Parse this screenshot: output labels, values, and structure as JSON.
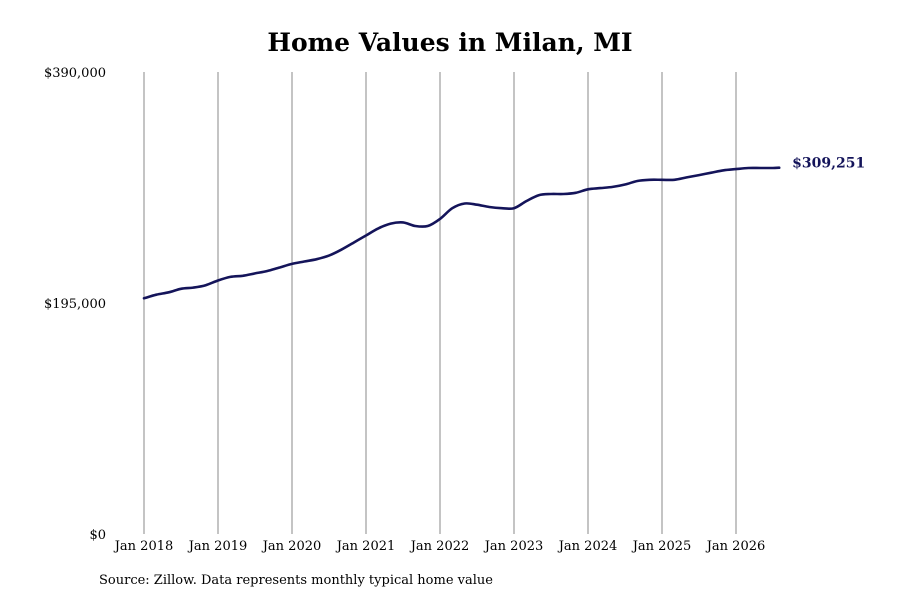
{
  "chart_data": {
    "type": "line",
    "title": "Home Values in Milan, MI",
    "xlabel": "",
    "ylabel": "",
    "ylim": [
      0,
      390000
    ],
    "yticks": [
      {
        "value": 0,
        "label": "$0"
      },
      {
        "value": 195000,
        "label": "$195,000"
      },
      {
        "value": 390000,
        "label": "$390,000"
      }
    ],
    "xticks": [
      "Jan 2018",
      "Jan 2019",
      "Jan 2020",
      "Jan 2021",
      "Jan 2022",
      "Jan 2023",
      "Jan 2024",
      "Jan 2025",
      "Jan 2026"
    ],
    "grid": "vertical",
    "line_color": "#14145a",
    "series": [
      {
        "x": [
          "2018-01",
          "2018-03",
          "2018-05",
          "2018-07",
          "2018-09",
          "2018-11",
          "2019-01",
          "2019-03",
          "2019-05",
          "2019-07",
          "2019-09",
          "2019-11",
          "2020-01",
          "2020-03",
          "2020-05",
          "2020-07",
          "2020-09",
          "2020-11",
          "2021-01",
          "2021-03",
          "2021-05",
          "2021-07",
          "2021-09",
          "2021-11",
          "2022-01",
          "2022-03",
          "2022-05",
          "2022-07",
          "2022-09",
          "2022-11",
          "2023-01",
          "2023-03",
          "2023-05",
          "2023-07",
          "2023-09",
          "2023-11",
          "2024-01",
          "2024-03",
          "2024-05",
          "2024-07",
          "2024-09",
          "2024-11",
          "2025-01",
          "2025-03",
          "2025-05",
          "2025-07",
          "2025-09",
          "2025-11",
          "2026-01",
          "2026-03",
          "2026-05",
          "2026-07",
          "2026-08"
        ],
        "values": [
          199000,
          202000,
          204000,
          207000,
          208000,
          210000,
          214000,
          217000,
          218000,
          220000,
          222000,
          225000,
          228000,
          230000,
          232000,
          235000,
          240000,
          246000,
          252000,
          258000,
          262000,
          263000,
          260000,
          260000,
          266000,
          275000,
          279000,
          278000,
          276000,
          275000,
          275000,
          281000,
          286000,
          287000,
          287000,
          288000,
          291000,
          292000,
          293000,
          295000,
          298000,
          299000,
          299000,
          299000,
          301000,
          303000,
          305000,
          307000,
          308000,
          309000,
          309000,
          309000,
          309251
        ],
        "end_label": "$309,251"
      }
    ]
  },
  "source_note": "Source: Zillow. Data represents monthly typical home value"
}
